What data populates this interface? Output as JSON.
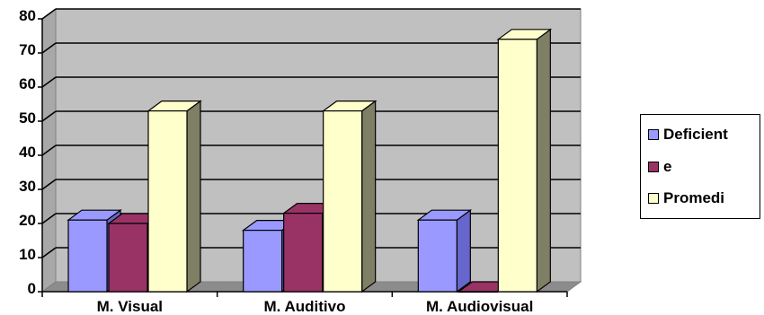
{
  "chart_data": {
    "type": "bar",
    "style": "3d-clustered-column",
    "categories": [
      "M. Visual",
      "M. Auditivo",
      "M. Audiovisual"
    ],
    "series": [
      {
        "name": "Deficient",
        "values": [
          21,
          18,
          21
        ],
        "color": "#9999ff",
        "shade": "#6666cc"
      },
      {
        "name": "e",
        "values": [
          20,
          23,
          0
        ],
        "color": "#993366",
        "shade": "#6e2149"
      },
      {
        "name": "Promedi",
        "values": [
          53,
          53,
          74
        ],
        "color": "#ffffcc",
        "shade": "#7f7f66"
      }
    ],
    "y_ticks": [
      "0",
      "10",
      "20",
      "30",
      "40",
      "50",
      "60",
      "70",
      "80"
    ],
    "ylim": [
      0,
      80
    ],
    "grid": true,
    "wall_color": "#c0c0c0",
    "legend_position": "right"
  }
}
